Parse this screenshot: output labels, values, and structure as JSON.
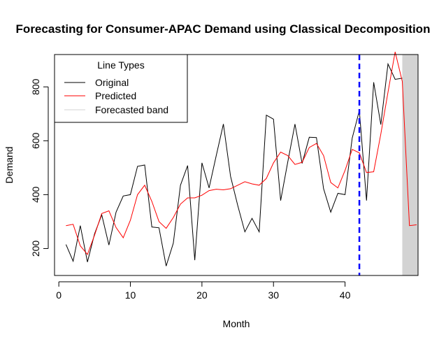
{
  "chart_data": {
    "type": "line",
    "title": "Forecasting for Consumer-APAC Demand using Classical Decomposition",
    "xlabel": "Month",
    "ylabel": "Demand",
    "xlim": [
      -0.6,
      50.2
    ],
    "ylim": [
      100,
      920
    ],
    "x_ticks": [
      0,
      10,
      20,
      30,
      40
    ],
    "y_ticks": [
      200,
      400,
      600,
      800
    ],
    "grid": false,
    "forecast_start_month": 42,
    "forecasted_band": [
      48,
      50.2
    ],
    "legend": {
      "title": "Line Types",
      "position": "top-left",
      "entries": [
        "Original",
        "Predicted",
        "Forecasted band"
      ]
    },
    "colors": {
      "original": "#000000",
      "predicted": "#ff0000",
      "band": "#d3d3d3",
      "forecast_line": "#0000ff"
    },
    "series": [
      {
        "name": "Original",
        "x": [
          1,
          2,
          3,
          4,
          5,
          6,
          7,
          8,
          9,
          10,
          11,
          12,
          13,
          14,
          15,
          16,
          17,
          18,
          19,
          20,
          21,
          22,
          23,
          24,
          25,
          26,
          27,
          28,
          29,
          30,
          31,
          32,
          33,
          34,
          35,
          36,
          37,
          38,
          39,
          40,
          41,
          42,
          43,
          44,
          45,
          46,
          47,
          48
        ],
        "values": [
          215,
          153,
          285,
          150,
          255,
          325,
          213,
          335,
          395,
          400,
          505,
          510,
          280,
          277,
          135,
          220,
          435,
          508,
          157,
          518,
          425,
          545,
          662,
          468,
          360,
          262,
          312,
          262,
          695,
          680,
          378,
          522,
          662,
          516,
          613,
          612,
          422,
          335,
          405,
          400,
          610,
          712,
          378,
          817,
          660,
          885,
          828,
          832
        ]
      },
      {
        "name": "Predicted",
        "x": [
          1,
          2,
          3,
          4,
          5,
          6,
          7,
          8,
          9,
          10,
          11,
          12,
          13,
          14,
          15,
          16,
          17,
          18,
          19,
          20,
          21,
          22,
          23,
          24,
          25,
          26,
          27,
          28,
          29,
          30,
          31,
          32,
          33,
          34,
          35,
          36,
          37,
          38,
          39,
          40,
          41,
          42,
          43,
          44,
          45,
          46,
          47,
          48,
          49,
          50
        ],
        "values": [
          285,
          290,
          210,
          178,
          250,
          330,
          340,
          278,
          240,
          305,
          400,
          435,
          375,
          300,
          275,
          315,
          365,
          388,
          388,
          398,
          415,
          420,
          418,
          422,
          435,
          448,
          440,
          435,
          460,
          518,
          558,
          545,
          512,
          520,
          575,
          590,
          545,
          445,
          425,
          490,
          568,
          555,
          482,
          485,
          625,
          780,
          930,
          820,
          285,
          288
        ]
      }
    ]
  }
}
